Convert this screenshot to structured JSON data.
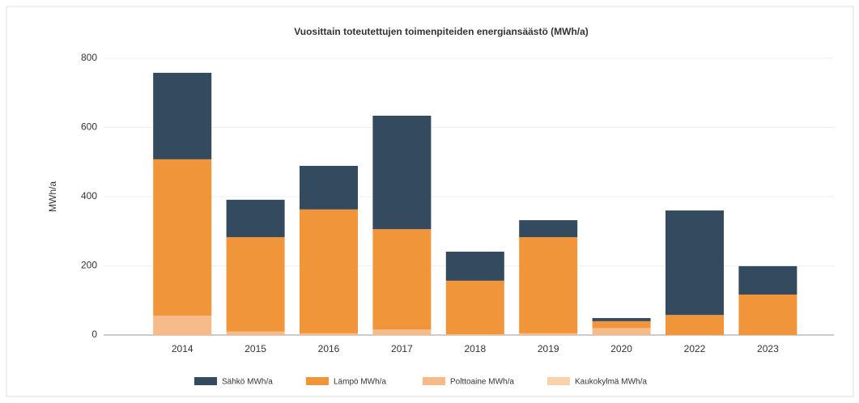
{
  "chart_data": {
    "type": "stacked-bar",
    "title": "Vuosittain toteutettujen toimenpiteiden energiansäästö (MWh/a)",
    "y_label": "MWh/a",
    "categories": [
      "2014",
      "2015",
      "2016",
      "2017",
      "2018",
      "2019",
      "2020",
      "2022",
      "2023"
    ],
    "series": [
      {
        "name": "Kaukokylmä MWh/a",
        "color": "#f9d2ab",
        "values": [
          0,
          0,
          0,
          0,
          0,
          0,
          0,
          0,
          0
        ]
      },
      {
        "name": "Polttoaine MWh/a",
        "color": "#f6bb88",
        "values": [
          56,
          10,
          5,
          16,
          2,
          5,
          20,
          0,
          0
        ]
      },
      {
        "name": "Lämpö MWh/a",
        "color": "#f0953a",
        "values": [
          452,
          273,
          358,
          290,
          155,
          278,
          20,
          58,
          117
        ]
      },
      {
        "name": "Sähkö MWh/a",
        "color": "#344a5e",
        "values": [
          250,
          108,
          126,
          328,
          84,
          49,
          9,
          302,
          82
        ]
      }
    ],
    "legend_order": [
      3,
      2,
      1,
      0
    ],
    "ylim": [
      0,
      800
    ],
    "yticks": [
      0,
      200,
      400,
      600,
      800
    ],
    "grid": true
  }
}
